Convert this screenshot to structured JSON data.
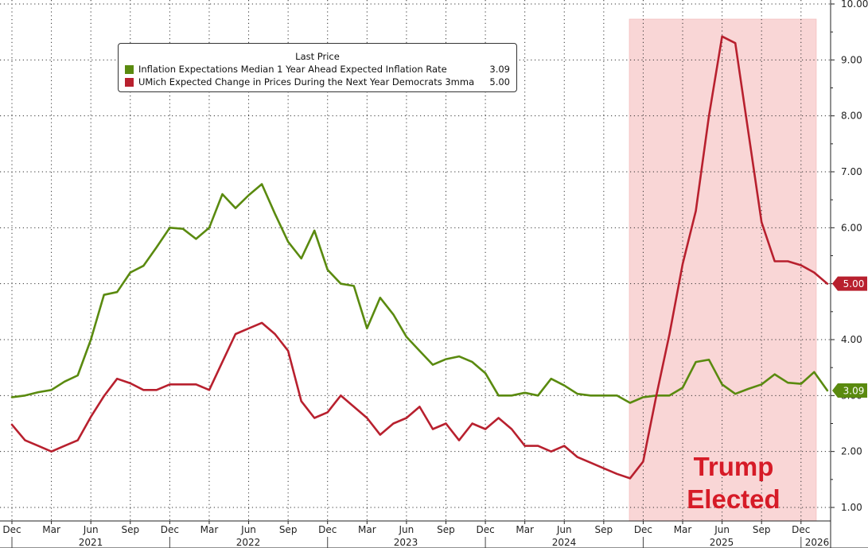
{
  "legend": {
    "title": "Last Price",
    "entries": [
      {
        "label": "Inflation Expectations Median 1 Year Ahead Expected Inflation Rate",
        "value": "3.09",
        "color": "#5a8a0f"
      },
      {
        "label": "UMich Expected Change in Prices During the Next Year Democrats 3mma",
        "value": "5.00",
        "color": "#b8202e"
      }
    ]
  },
  "annotation": {
    "line1": "Trump",
    "line2": "Elected",
    "color": "#d61b27"
  },
  "chart_data": {
    "type": "line",
    "y_axis": {
      "position": "right",
      "ylim": [
        0.8,
        10.0
      ],
      "ticks": [
        "1.00",
        "2.00",
        "3.00",
        "4.00",
        "5.00",
        "6.00",
        "7.00",
        "8.00",
        "9.00",
        "10.00"
      ]
    },
    "x_axis": {
      "month_labels": [
        "Dec",
        "Mar",
        "Jun",
        "Sep",
        "Dec",
        "Mar",
        "Jun",
        "Sep",
        "Dec",
        "Mar",
        "Jun",
        "Sep",
        "Dec",
        "Mar",
        "Jun",
        "Sep",
        "Dec",
        "Mar",
        "Jun",
        "Sep",
        "Dec"
      ],
      "year_labels": [
        "2021",
        "2022",
        "2023",
        "2024",
        "2025",
        "2026"
      ]
    },
    "grid": true,
    "shaded_region": {
      "from": "2024-11",
      "to": "2026-01",
      "color": "#f9d6d6"
    },
    "series": [
      {
        "name": "Inflation Expectations Median 1 Year Ahead Expected Inflation Rate",
        "color": "#5a8a0f",
        "last_value": "3.09",
        "points": [
          [
            "2020-12",
            2.97
          ],
          [
            "2021-01",
            3.0
          ],
          [
            "2021-02",
            3.06
          ],
          [
            "2021-03",
            3.1
          ],
          [
            "2021-04",
            3.25
          ],
          [
            "2021-05",
            3.36
          ],
          [
            "2021-06",
            4.0
          ],
          [
            "2021-07",
            4.8
          ],
          [
            "2021-08",
            4.85
          ],
          [
            "2021-09",
            5.2
          ],
          [
            "2021-10",
            5.32
          ],
          [
            "2021-11",
            5.65
          ],
          [
            "2021-12",
            6.0
          ],
          [
            "2022-01",
            5.98
          ],
          [
            "2022-02",
            5.8
          ],
          [
            "2022-03",
            6.0
          ],
          [
            "2022-04",
            6.6
          ],
          [
            "2022-05",
            6.35
          ],
          [
            "2022-06",
            6.58
          ],
          [
            "2022-07",
            6.78
          ],
          [
            "2022-08",
            6.25
          ],
          [
            "2022-09",
            5.75
          ],
          [
            "2022-10",
            5.45
          ],
          [
            "2022-11",
            5.95
          ],
          [
            "2022-12",
            5.25
          ],
          [
            "2023-01",
            5.0
          ],
          [
            "2023-02",
            4.96
          ],
          [
            "2023-03",
            4.2
          ],
          [
            "2023-04",
            4.75
          ],
          [
            "2023-05",
            4.45
          ],
          [
            "2023-06",
            4.05
          ],
          [
            "2023-07",
            3.8
          ],
          [
            "2023-08",
            3.55
          ],
          [
            "2023-09",
            3.65
          ],
          [
            "2023-10",
            3.7
          ],
          [
            "2023-11",
            3.6
          ],
          [
            "2023-12",
            3.4
          ],
          [
            "2024-01",
            3.0
          ],
          [
            "2024-02",
            3.0
          ],
          [
            "2024-03",
            3.05
          ],
          [
            "2024-04",
            3.0
          ],
          [
            "2024-05",
            3.3
          ],
          [
            "2024-06",
            3.18
          ],
          [
            "2024-07",
            3.03
          ],
          [
            "2024-08",
            3.0
          ],
          [
            "2024-09",
            3.0
          ],
          [
            "2024-10",
            3.0
          ],
          [
            "2024-11",
            2.87
          ],
          [
            "2024-12",
            2.97
          ],
          [
            "2025-01",
            3.0
          ],
          [
            "2025-02",
            3.0
          ],
          [
            "2025-03",
            3.14
          ],
          [
            "2025-04",
            3.6
          ],
          [
            "2025-05",
            3.64
          ],
          [
            "2025-06",
            3.2
          ],
          [
            "2025-07",
            3.03
          ],
          [
            "2025-08",
            3.12
          ],
          [
            "2025-09",
            3.2
          ],
          [
            "2025-10",
            3.38
          ],
          [
            "2025-11",
            3.23
          ],
          [
            "2025-12",
            3.21
          ],
          [
            "2026-01",
            3.42
          ],
          [
            "2026-02",
            3.09
          ]
        ]
      },
      {
        "name": "UMich Expected Change in Prices During the Next Year Democrats 3mma",
        "color": "#b8202e",
        "last_value": "5.00",
        "points": [
          [
            "2020-12",
            2.48
          ],
          [
            "2021-01",
            2.2
          ],
          [
            "2021-02",
            2.1
          ],
          [
            "2021-03",
            2.0
          ],
          [
            "2021-04",
            2.1
          ],
          [
            "2021-05",
            2.2
          ],
          [
            "2021-06",
            2.62
          ],
          [
            "2021-07",
            2.99
          ],
          [
            "2021-08",
            3.3
          ],
          [
            "2021-09",
            3.22
          ],
          [
            "2021-10",
            3.1
          ],
          [
            "2021-11",
            3.1
          ],
          [
            "2021-12",
            3.2
          ],
          [
            "2022-01",
            3.2
          ],
          [
            "2022-02",
            3.2
          ],
          [
            "2022-03",
            3.1
          ],
          [
            "2022-04",
            3.6
          ],
          [
            "2022-05",
            4.1
          ],
          [
            "2022-06",
            4.2
          ],
          [
            "2022-07",
            4.3
          ],
          [
            "2022-08",
            4.1
          ],
          [
            "2022-09",
            3.8
          ],
          [
            "2022-10",
            2.9
          ],
          [
            "2022-11",
            2.6
          ],
          [
            "2022-12",
            2.7
          ],
          [
            "2023-01",
            3.0
          ],
          [
            "2023-02",
            2.8
          ],
          [
            "2023-03",
            2.6
          ],
          [
            "2023-04",
            2.3
          ],
          [
            "2023-05",
            2.5
          ],
          [
            "2023-06",
            2.6
          ],
          [
            "2023-07",
            2.8
          ],
          [
            "2023-08",
            2.4
          ],
          [
            "2023-09",
            2.5
          ],
          [
            "2023-10",
            2.2
          ],
          [
            "2023-11",
            2.5
          ],
          [
            "2023-12",
            2.4
          ],
          [
            "2024-01",
            2.6
          ],
          [
            "2024-02",
            2.4
          ],
          [
            "2024-03",
            2.1
          ],
          [
            "2024-04",
            2.1
          ],
          [
            "2024-05",
            2.0
          ],
          [
            "2024-06",
            2.1
          ],
          [
            "2024-07",
            1.9
          ],
          [
            "2024-08",
            1.8
          ],
          [
            "2024-09",
            1.7
          ],
          [
            "2024-10",
            1.6
          ],
          [
            "2024-11",
            1.52
          ],
          [
            "2024-12",
            1.82
          ],
          [
            "2025-01",
            3.0
          ],
          [
            "2025-02",
            4.1
          ],
          [
            "2025-03",
            5.35
          ],
          [
            "2025-04",
            6.3
          ],
          [
            "2025-05",
            8.0
          ],
          [
            "2025-06",
            9.42
          ],
          [
            "2025-07",
            9.3
          ],
          [
            "2025-08",
            7.7
          ],
          [
            "2025-09",
            6.1
          ],
          [
            "2025-10",
            5.4
          ],
          [
            "2025-11",
            5.4
          ],
          [
            "2025-12",
            5.33
          ],
          [
            "2026-01",
            5.2
          ],
          [
            "2026-02",
            5.0
          ]
        ]
      }
    ]
  }
}
